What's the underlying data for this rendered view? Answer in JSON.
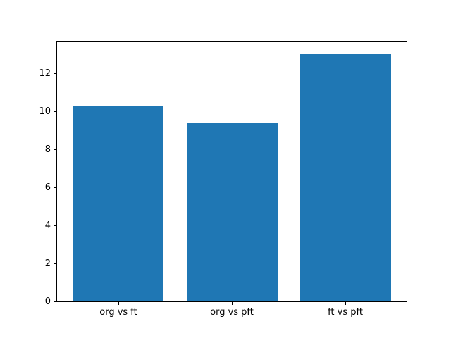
{
  "chart_data": {
    "type": "bar",
    "categories": [
      "org vs ft",
      "org vs pft",
      "ft vs pft"
    ],
    "values": [
      10.25,
      9.4,
      13.0
    ],
    "title": "",
    "xlabel": "",
    "ylabel": "",
    "ylim": [
      0,
      13.65
    ],
    "yticks": [
      0,
      2,
      4,
      6,
      8,
      10,
      12
    ],
    "ytick_labels": [
      "0",
      "2",
      "4",
      "6",
      "8",
      "10",
      "12"
    ],
    "grid": false,
    "legend_position": "none",
    "bar_color": "#1f77b4",
    "axis_color": "#000000",
    "background_color": "#ffffff"
  }
}
